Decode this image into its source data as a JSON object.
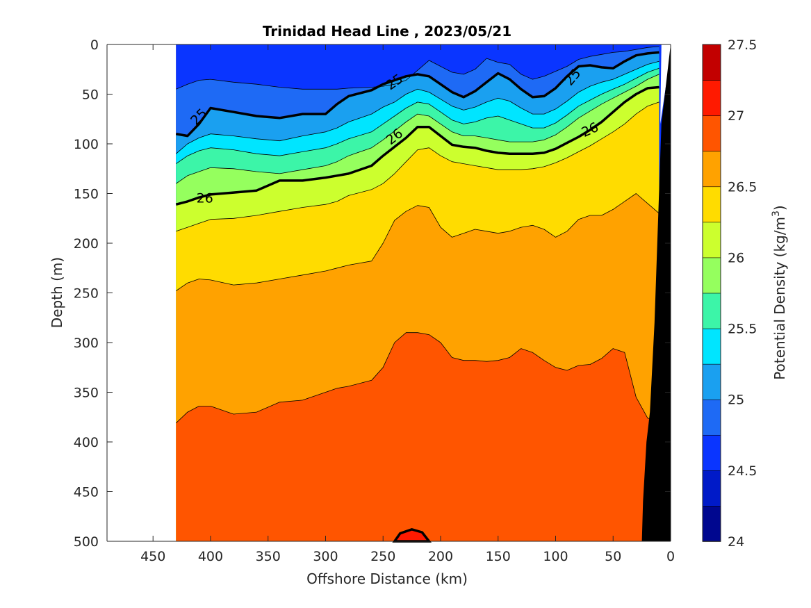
{
  "chart_data": {
    "type": "heatmap",
    "subtype": "filled-contour",
    "title": "Trinidad Head Line , 2023/05/21",
    "xlabel": "Offshore Distance (km)",
    "ylabel": "Depth (m)",
    "colorbar_label": "Potential Density (kg/m",
    "colorbar_label_superscript": "3",
    "colorbar_label_suffix": ")",
    "xlim": [
      490,
      0
    ],
    "x_reversed": true,
    "ylim": [
      0,
      500
    ],
    "y_reversed": true,
    "xticks": [
      450,
      400,
      350,
      300,
      250,
      200,
      150,
      100,
      50,
      0
    ],
    "yticks": [
      0,
      50,
      100,
      150,
      200,
      250,
      300,
      350,
      400,
      450,
      500
    ],
    "xtick_labels": [
      "450",
      "400",
      "350",
      "300",
      "250",
      "200",
      "150",
      "100",
      "50",
      "0"
    ],
    "ytick_labels": [
      "0",
      "50",
      "100",
      "150",
      "200",
      "250",
      "300",
      "350",
      "400",
      "450",
      "500"
    ],
    "colorbar_range": [
      24,
      27.5
    ],
    "colorbar_step": 0.25,
    "colorbar_ticks": [
      24,
      24.5,
      25,
      25.5,
      26,
      26.5,
      27,
      27.5
    ],
    "colorbar_tick_labels": [
      "24",
      "24.5",
      "25",
      "25.5",
      "26",
      "26.5",
      "27",
      "27.5"
    ],
    "colorbar_colors": [
      "#00078f",
      "#001ac8",
      "#0a35ff",
      "#1e6af5",
      "#1aa0f0",
      "#00e5ff",
      "#3cf5a8",
      "#95ff5e",
      "#ccff2e",
      "#ffdc00",
      "#ffa200",
      "#ff5500",
      "#ff1a00",
      "#c20000"
    ],
    "data_x_range": [
      430,
      0
    ],
    "x": [
      430,
      420,
      410,
      400,
      380,
      360,
      340,
      320,
      300,
      290,
      280,
      260,
      250,
      240,
      230,
      220,
      210,
      200,
      190,
      180,
      170,
      160,
      150,
      140,
      130,
      120,
      110,
      100,
      90,
      80,
      70,
      60,
      50,
      40,
      30,
      20,
      10
    ],
    "isopycnals": [
      {
        "sigma": 24.5,
        "depth": [
          0,
          0,
          0,
          0,
          0,
          0,
          0,
          0,
          0,
          0,
          0,
          0,
          0,
          0,
          0,
          0,
          0,
          0,
          0,
          0,
          0,
          0,
          0,
          0,
          0,
          0,
          0,
          0,
          0,
          0,
          0,
          0,
          0,
          0,
          0,
          0,
          0
        ]
      },
      {
        "sigma": 24.75,
        "depth": [
          45,
          40,
          36,
          35,
          38,
          40,
          43,
          45,
          45,
          45,
          44,
          43,
          42,
          40,
          36,
          26,
          16,
          22,
          28,
          30,
          25,
          14,
          18,
          20,
          30,
          35,
          32,
          27,
          22,
          15,
          12,
          10,
          8,
          7,
          5,
          3,
          2
        ]
      },
      {
        "sigma": 25.0,
        "depth": [
          90,
          92,
          80,
          64,
          68,
          72,
          74,
          70,
          70,
          60,
          52,
          46,
          40,
          36,
          32,
          30,
          32,
          40,
          48,
          53,
          47,
          38,
          29,
          35,
          45,
          53,
          52,
          44,
          32,
          22,
          21,
          23,
          24,
          17,
          11,
          9,
          8
        ]
      },
      {
        "sigma": 25.25,
        "depth": [
          110,
          100,
          94,
          90,
          92,
          95,
          97,
          92,
          88,
          84,
          78,
          70,
          63,
          58,
          50,
          45,
          48,
          55,
          62,
          66,
          63,
          58,
          54,
          57,
          64,
          70,
          70,
          65,
          57,
          48,
          42,
          38,
          35,
          30,
          25,
          20,
          17
        ]
      },
      {
        "sigma": 25.5,
        "depth": [
          120,
          112,
          107,
          104,
          106,
          110,
          112,
          108,
          104,
          100,
          95,
          88,
          80,
          72,
          64,
          58,
          60,
          68,
          76,
          80,
          78,
          74,
          72,
          76,
          80,
          84,
          84,
          79,
          71,
          62,
          56,
          50,
          45,
          40,
          34,
          28,
          24
        ]
      },
      {
        "sigma": 25.75,
        "depth": [
          140,
          132,
          128,
          124,
          125,
          128,
          130,
          126,
          122,
          118,
          112,
          104,
          96,
          87,
          78,
          70,
          72,
          80,
          88,
          92,
          92,
          94,
          96,
          98,
          98,
          98,
          96,
          91,
          83,
          74,
          67,
          60,
          54,
          48,
          42,
          35,
          30
        ]
      },
      {
        "sigma": 26.0,
        "depth": [
          161,
          158,
          154,
          151,
          149,
          147,
          137,
          137,
          134,
          132,
          130,
          122,
          112,
          103,
          94,
          83,
          83,
          92,
          101,
          103,
          104,
          107,
          109,
          110,
          110,
          110,
          109,
          105,
          99,
          93,
          86,
          78,
          68,
          58,
          50,
          44,
          43
        ]
      },
      {
        "sigma": 26.25,
        "depth": [
          188,
          184,
          180,
          176,
          175,
          172,
          168,
          164,
          161,
          158,
          152,
          146,
          140,
          130,
          118,
          106,
          104,
          112,
          118,
          120,
          122,
          124,
          126,
          126,
          126,
          125,
          123,
          119,
          114,
          108,
          102,
          95,
          88,
          80,
          70,
          62,
          58
        ]
      },
      {
        "sigma": 26.5,
        "depth": [
          248,
          240,
          236,
          237,
          242,
          240,
          236,
          232,
          228,
          225,
          222,
          218,
          200,
          177,
          168,
          162,
          164,
          184,
          194,
          190,
          186,
          188,
          190,
          188,
          184,
          182,
          186,
          194,
          188,
          176,
          172,
          172,
          166,
          158,
          150,
          160,
          170
        ]
      },
      {
        "sigma": 26.75,
        "depth": [
          381,
          370,
          364,
          364,
          372,
          370,
          360,
          358,
          350,
          346,
          344,
          338,
          325,
          300,
          290,
          290,
          292,
          300,
          315,
          318,
          318,
          319,
          318,
          315,
          306,
          310,
          318,
          325,
          328,
          323,
          322,
          316,
          306,
          310,
          355,
          376,
          380
        ]
      },
      {
        "sigma": 27.0,
        "xrange": [
          240,
          210
        ],
        "peak_depth": 488
      }
    ],
    "contour_labels": [
      {
        "x": 410,
        "y": 73,
        "text": "25",
        "angle": -45
      },
      {
        "x": 240,
        "y": 38,
        "text": "25",
        "angle": -35
      },
      {
        "x": 85,
        "y": 33,
        "text": "25",
        "angle": -50
      },
      {
        "x": 405,
        "y": 155,
        "text": "26",
        "angle": 0
      },
      {
        "x": 240,
        "y": 93,
        "text": "26",
        "angle": -38
      },
      {
        "x": 70,
        "y": 86,
        "text": "26",
        "angle": -25
      }
    ],
    "bold_isopycnals": [
      25.0,
      26.0,
      27.0
    ],
    "seafloor": {
      "x": [
        0,
        0,
        14,
        26
      ],
      "depth": [
        0,
        500,
        500,
        0
      ],
      "top_depth_at_shore": 0,
      "shelf_points": [
        [
          0,
          0
        ],
        [
          10,
          80
        ],
        [
          16,
          280
        ],
        [
          19,
          360
        ],
        [
          22,
          400
        ],
        [
          24,
          460
        ],
        [
          26,
          500
        ]
      ]
    }
  }
}
